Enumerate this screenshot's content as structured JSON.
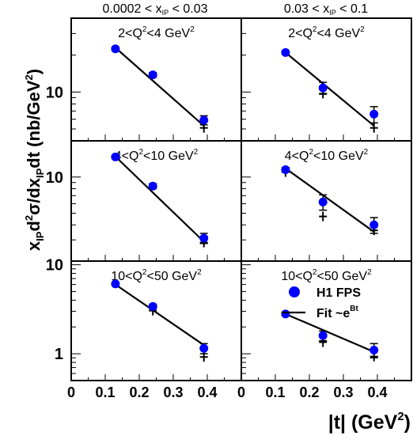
{
  "chart_data": {
    "type": "scatter",
    "y_scale": "log",
    "ylabel_parts": {
      "base": "x",
      "sub1": "IP",
      "d": "d",
      "sup2": "2",
      "sigma": "σ/dx",
      "sub2": "IP",
      "dt": "dt (nb/GeV",
      "sup3": "2",
      "close": ")"
    },
    "xlabel_parts": {
      "base": "|t| (GeV",
      "sup": "2",
      "close": ")"
    },
    "x_ticks": [
      "0",
      "0.1",
      "0.2",
      "0.3",
      "0.4"
    ],
    "x_lim": [
      0,
      0.5
    ],
    "columns": [
      {
        "prefix": "0.0002 < x",
        "sub": "IP",
        "suffix": " < 0.03"
      },
      {
        "prefix": "0.03 < x",
        "sub": "IP",
        "suffix": " < 0.1"
      }
    ],
    "rows": [
      {
        "y_range": [
          4,
          40
        ],
        "y_tick_labels": [
          {
            "value": 10,
            "label": "10"
          }
        ],
        "panel_labels": [
          {
            "text": "2<Q",
            "sup": "2",
            "rest": "<4 GeV",
            "sup2": "2"
          },
          {
            "text": "2<Q",
            "sup": "2",
            "rest": "<4 GeV",
            "sup2": "2"
          }
        ]
      },
      {
        "y_range": [
          2,
          20
        ],
        "y_tick_labels": [
          {
            "value": 10,
            "label": "10"
          }
        ],
        "panel_labels": [
          {
            "text": "4<Q",
            "sup": "2",
            "rest": "<10 GeV",
            "sup2": "2"
          },
          {
            "text": "4<Q",
            "sup": "2",
            "rest": "<10 GeV",
            "sup2": "2"
          }
        ]
      },
      {
        "y_range": [
          0.5,
          11
        ],
        "y_tick_labels": [
          {
            "value": 10,
            "label": "10"
          },
          {
            "value": 1,
            "label": "1"
          }
        ],
        "panel_labels": [
          {
            "text": "10<Q",
            "sup": "2",
            "rest": "<50 GeV",
            "sup2": "2"
          },
          {
            "text": "10<Q",
            "sup": "2",
            "rest": "<50 GeV",
            "sup2": "2"
          }
        ]
      }
    ],
    "panels": [
      {
        "row": 0,
        "col": 0,
        "points": [
          {
            "x": 0.13,
            "y": 22.5,
            "err": 0.8
          },
          {
            "x": 0.24,
            "y": 13.8,
            "err": 0.6
          },
          {
            "x": 0.39,
            "y": 5.9,
            "err": 0.5
          }
        ],
        "markers": [
          {
            "x": 0.39,
            "y": 5.1
          }
        ],
        "fit": [
          {
            "x": 0.13,
            "y": 23.0
          },
          {
            "x": 0.39,
            "y": 5.3
          }
        ]
      },
      {
        "row": 0,
        "col": 1,
        "points": [
          {
            "x": 0.13,
            "y": 21.0,
            "err": 0.7
          },
          {
            "x": 0.24,
            "y": 10.8,
            "err": 1.2
          },
          {
            "x": 0.39,
            "y": 6.6,
            "err": 1.0
          }
        ],
        "markers": [
          {
            "x": 0.24,
            "y": 9.7
          },
          {
            "x": 0.39,
            "y": 5.1
          }
        ],
        "fit": [
          {
            "x": 0.13,
            "y": 21.0
          },
          {
            "x": 0.39,
            "y": 5.3
          }
        ]
      },
      {
        "row": 1,
        "col": 0,
        "points": [
          {
            "x": 0.13,
            "y": 14.7,
            "err": 0.5
          },
          {
            "x": 0.24,
            "y": 8.4,
            "err": 0.4
          },
          {
            "x": 0.39,
            "y": 3.1,
            "err": 0.3
          }
        ],
        "markers": [
          {
            "x": 0.39,
            "y": 2.85
          }
        ],
        "fit": [
          {
            "x": 0.13,
            "y": 14.8
          },
          {
            "x": 0.39,
            "y": 2.9
          }
        ]
      },
      {
        "row": 1,
        "col": 1,
        "points": [
          {
            "x": 0.13,
            "y": 11.5,
            "err": 0.5
          },
          {
            "x": 0.24,
            "y": 6.2,
            "err": 0.9
          },
          {
            "x": 0.39,
            "y": 4.0,
            "err": 0.6
          }
        ],
        "markers": [
          {
            "x": 0.13,
            "y": 11.0
          },
          {
            "x": 0.24,
            "y": 4.7
          },
          {
            "x": 0.39,
            "y": 3.6
          }
        ],
        "fit": [
          {
            "x": 0.13,
            "y": 11.8
          },
          {
            "x": 0.39,
            "y": 3.5
          }
        ]
      },
      {
        "row": 2,
        "col": 0,
        "points": [
          {
            "x": 0.13,
            "y": 6.1,
            "err": 0.25
          },
          {
            "x": 0.24,
            "y": 3.4,
            "err": 0.2
          },
          {
            "x": 0.39,
            "y": 1.15,
            "err": 0.15
          }
        ],
        "markers": [
          {
            "x": 0.24,
            "y": 3.05
          },
          {
            "x": 0.39,
            "y": 0.92
          }
        ],
        "fit": [
          {
            "x": 0.13,
            "y": 6.0
          },
          {
            "x": 0.39,
            "y": 1.25
          }
        ]
      },
      {
        "row": 2,
        "col": 1,
        "points": [
          {
            "x": 0.13,
            "y": 2.8,
            "err": 0.12
          },
          {
            "x": 0.24,
            "y": 1.6,
            "err": 0.2
          },
          {
            "x": 0.39,
            "y": 1.1,
            "err": 0.2
          }
        ],
        "markers": [
          {
            "x": 0.24,
            "y": 1.35
          },
          {
            "x": 0.39,
            "y": 0.93
          }
        ],
        "fit": [
          {
            "x": 0.13,
            "y": 2.8
          },
          {
            "x": 0.39,
            "y": 1.05
          }
        ]
      }
    ],
    "legend": {
      "placement": "bottom-right panel",
      "points_label": "H1 FPS",
      "fit_label": "Fit ~e",
      "fit_sup": "Bt"
    },
    "colors": {
      "points": "#0000ff",
      "lines": "#000000"
    }
  }
}
